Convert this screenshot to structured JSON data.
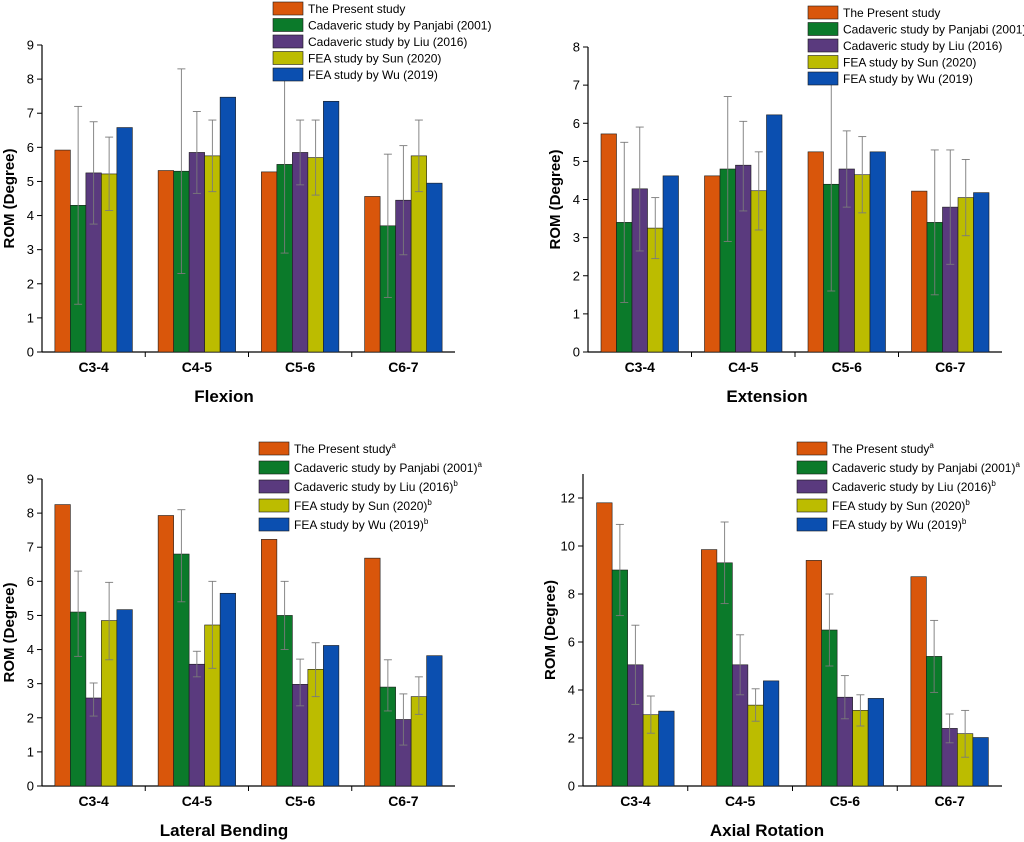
{
  "chart_data": [
    {
      "type": "bar",
      "title": "Flexion",
      "xlabel": "",
      "ylabel": "ROM (Degree)",
      "ylim": [
        0,
        9
      ],
      "yticks": [
        0,
        1,
        2,
        3,
        4,
        5,
        6,
        7,
        8,
        9
      ],
      "legend_position": "top-right",
      "categories": [
        "C3-4",
        "C4-5",
        "C5-6",
        "C6-7"
      ],
      "series": [
        {
          "name": "The Present study",
          "sup": "",
          "color": "#d9560b",
          "values": [
            5.92,
            5.32,
            5.28,
            4.56
          ],
          "err_high": [
            null,
            null,
            null,
            null
          ],
          "err_low": [
            null,
            null,
            null,
            null
          ]
        },
        {
          "name": "Cadaveric study by Panjabi (2001)",
          "sup": "",
          "color": "#0b7a2a",
          "values": [
            4.3,
            5.3,
            5.5,
            3.7
          ],
          "err_high": [
            7.2,
            8.3,
            8.1,
            5.8
          ],
          "err_low": [
            1.4,
            2.3,
            2.9,
            1.6
          ]
        },
        {
          "name": "Cadaveric study by Liu (2016)",
          "sup": "",
          "color": "#5a3a7e",
          "values": [
            5.25,
            5.85,
            5.85,
            4.45
          ],
          "err_high": [
            6.75,
            7.05,
            6.8,
            6.05
          ],
          "err_low": [
            3.75,
            4.65,
            4.9,
            2.85
          ]
        },
        {
          "name": "FEA study by Sun (2020)",
          "sup": "",
          "color": "#bcbc00",
          "values": [
            5.22,
            5.75,
            5.7,
            5.75
          ],
          "err_high": [
            6.3,
            6.8,
            6.8,
            6.8
          ],
          "err_low": [
            4.15,
            4.7,
            4.6,
            4.7
          ]
        },
        {
          "name": "FEA study by Wu (2019)",
          "sup": "",
          "color": "#0b4fb0",
          "values": [
            6.58,
            7.47,
            7.35,
            4.95
          ],
          "err_high": [
            null,
            null,
            null,
            null
          ],
          "err_low": [
            null,
            null,
            null,
            null
          ]
        }
      ]
    },
    {
      "type": "bar",
      "title": "Extension",
      "xlabel": "",
      "ylabel": "ROM (Degree)",
      "ylim": [
        0,
        8
      ],
      "yticks": [
        0,
        1,
        2,
        3,
        4,
        5,
        6,
        7,
        8
      ],
      "legend_position": "top-right",
      "categories": [
        "C3-4",
        "C4-5",
        "C5-6",
        "C6-7"
      ],
      "series": [
        {
          "name": "The Present study",
          "sup": "",
          "color": "#d9560b",
          "values": [
            5.72,
            4.62,
            5.25,
            4.22
          ],
          "err_high": [
            null,
            null,
            null,
            null
          ],
          "err_low": [
            null,
            null,
            null,
            null
          ]
        },
        {
          "name": "Cadaveric study by Panjabi (2001)",
          "sup": "",
          "color": "#0b7a2a",
          "values": [
            3.4,
            4.8,
            4.4,
            3.4
          ],
          "err_high": [
            5.5,
            6.7,
            7.2,
            5.3
          ],
          "err_low": [
            1.3,
            2.9,
            1.6,
            1.5
          ]
        },
        {
          "name": "Cadaveric study by Liu (2016)",
          "sup": "",
          "color": "#5a3a7e",
          "values": [
            4.28,
            4.9,
            4.8,
            3.8
          ],
          "err_high": [
            5.9,
            6.05,
            5.8,
            5.3
          ],
          "err_low": [
            2.65,
            3.7,
            3.8,
            2.3
          ]
        },
        {
          "name": "FEA study by Sun (2020)",
          "sup": "",
          "color": "#bcbc00",
          "values": [
            3.25,
            4.23,
            4.65,
            4.05
          ],
          "err_high": [
            4.05,
            5.25,
            5.65,
            5.05
          ],
          "err_low": [
            2.45,
            3.2,
            3.65,
            3.05
          ]
        },
        {
          "name": "FEA study by Wu (2019)",
          "sup": "",
          "color": "#0b4fb0",
          "values": [
            4.62,
            6.22,
            5.25,
            4.18
          ],
          "err_high": [
            null,
            null,
            null,
            null
          ],
          "err_low": [
            null,
            null,
            null,
            null
          ]
        }
      ]
    },
    {
      "type": "bar",
      "title": "Lateral Bending",
      "xlabel": "",
      "ylabel": "ROM (Degree)",
      "ylim": [
        0,
        9
      ],
      "yticks": [
        0,
        1,
        2,
        3,
        4,
        5,
        6,
        7,
        8,
        9
      ],
      "legend_position": "top-right",
      "categories": [
        "C3-4",
        "C4-5",
        "C5-6",
        "C6-7"
      ],
      "series": [
        {
          "name": "The Present study",
          "sup": "a",
          "color": "#d9560b",
          "values": [
            8.25,
            7.93,
            7.23,
            6.68
          ],
          "err_high": [
            null,
            null,
            null,
            null
          ],
          "err_low": [
            null,
            null,
            null,
            null
          ]
        },
        {
          "name": "Cadaveric study by Panjabi (2001)",
          "sup": "a",
          "color": "#0b7a2a",
          "values": [
            5.1,
            6.8,
            5.0,
            2.9
          ],
          "err_high": [
            6.3,
            8.1,
            6.0,
            3.7
          ],
          "err_low": [
            3.8,
            5.4,
            4.0,
            2.2
          ]
        },
        {
          "name": "Cadaveric study by Liu (2016)",
          "sup": "b",
          "color": "#5a3a7e",
          "values": [
            2.58,
            3.57,
            2.98,
            1.95
          ],
          "err_high": [
            3.02,
            3.95,
            3.72,
            2.7
          ],
          "err_low": [
            2.05,
            3.2,
            2.35,
            1.2
          ]
        },
        {
          "name": "FEA study by Sun (2020)",
          "sup": "b",
          "color": "#bcbc00",
          "values": [
            4.85,
            4.72,
            3.42,
            2.62
          ],
          "err_high": [
            5.97,
            6.0,
            4.2,
            3.2
          ],
          "err_low": [
            3.7,
            3.45,
            2.62,
            2.1
          ]
        },
        {
          "name": "FEA study by Wu (2019)",
          "sup": "b",
          "color": "#0b4fb0",
          "values": [
            5.17,
            5.65,
            4.12,
            3.82
          ],
          "err_high": [
            null,
            null,
            null,
            null
          ],
          "err_low": [
            null,
            null,
            null,
            null
          ]
        }
      ]
    },
    {
      "type": "bar",
      "title": "Axial Rotation",
      "xlabel": "",
      "ylabel": "ROM (Degree)",
      "ylim": [
        0,
        13
      ],
      "yticks": [
        0,
        2,
        4,
        6,
        8,
        10,
        12
      ],
      "legend_position": "top-right",
      "categories": [
        "C3-4",
        "C4-5",
        "C5-6",
        "C6-7"
      ],
      "series": [
        {
          "name": "The Present study",
          "sup": "a",
          "color": "#d9560b",
          "values": [
            11.8,
            9.85,
            9.4,
            8.72
          ],
          "err_high": [
            null,
            null,
            null,
            null
          ],
          "err_low": [
            null,
            null,
            null,
            null
          ]
        },
        {
          "name": "Cadaveric study by Panjabi (2001)",
          "sup": "a",
          "color": "#0b7a2a",
          "values": [
            9.0,
            9.3,
            6.5,
            5.4
          ],
          "err_high": [
            10.9,
            11.0,
            8.0,
            6.9
          ],
          "err_low": [
            7.1,
            7.6,
            5.0,
            3.9
          ]
        },
        {
          "name": "Cadaveric study by Liu (2016)",
          "sup": "b",
          "color": "#5a3a7e",
          "values": [
            5.05,
            5.05,
            3.7,
            2.4
          ],
          "err_high": [
            6.7,
            6.3,
            4.6,
            3.0
          ],
          "err_low": [
            3.4,
            3.8,
            2.8,
            1.8
          ]
        },
        {
          "name": "FEA study by Sun (2020)",
          "sup": "b",
          "color": "#bcbc00",
          "values": [
            2.97,
            3.37,
            3.15,
            2.18
          ],
          "err_high": [
            3.75,
            4.05,
            3.8,
            3.15
          ],
          "err_low": [
            2.2,
            2.7,
            2.5,
            1.2
          ]
        },
        {
          "name": "FEA study by Wu (2019)",
          "sup": "b",
          "color": "#0b4fb0",
          "values": [
            3.12,
            4.38,
            3.65,
            2.02
          ],
          "err_high": [
            null,
            null,
            null,
            null
          ],
          "err_low": [
            null,
            null,
            null,
            null
          ]
        }
      ]
    }
  ]
}
